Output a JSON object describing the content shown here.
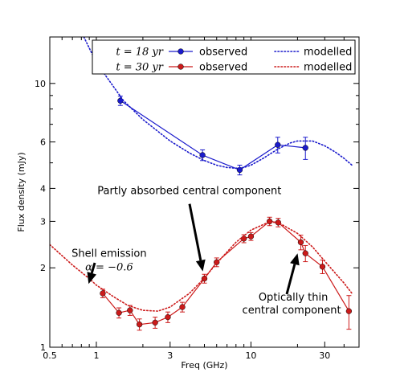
{
  "chart_data": {
    "type": "line",
    "title": "",
    "xlabel": "Freq (GHz)",
    "ylabel": "Flux density (mJy)",
    "xscale": "log",
    "yscale": "log",
    "xlim": [
      0.5,
      50
    ],
    "ylim": [
      1,
      15
    ],
    "xticks": [
      0.5,
      1,
      3,
      10,
      30
    ],
    "xtick_labels": [
      "0.5",
      "1",
      "3",
      "10",
      "30"
    ],
    "yticks": [
      1,
      2,
      3,
      4,
      6,
      10
    ],
    "ytick_labels": [
      "1",
      "2",
      "3",
      "4",
      "6",
      "10"
    ],
    "grid": false,
    "legend": {
      "placement": "top-right",
      "rows": [
        {
          "prefix": "t = 18 yr",
          "observed": "observed",
          "modelled": "modelled"
        },
        {
          "prefix": "t = 30 yr",
          "observed": "observed",
          "modelled": "modelled"
        }
      ]
    },
    "series": [
      {
        "name": "observed",
        "group": "t = 18 yr",
        "style": "line-marker",
        "color": "#1a1acc",
        "x": [
          1.43,
          4.86,
          8.46,
          14.9,
          22.5
        ],
        "y": [
          8.6,
          5.35,
          4.7,
          5.85,
          5.7
        ],
        "yerr": [
          0.35,
          0.25,
          0.2,
          0.4,
          0.55
        ]
      },
      {
        "name": "modelled",
        "group": "t = 18 yr",
        "style": "dotted",
        "color": "#1a1acc",
        "x": [
          0.83,
          1,
          1.5,
          2,
          3,
          4,
          5,
          6,
          7,
          8,
          9,
          10,
          12,
          15,
          18,
          20,
          25,
          30,
          35,
          40,
          45
        ],
        "y": [
          15,
          12.0,
          8.6,
          7.3,
          6.05,
          5.45,
          5.1,
          4.9,
          4.8,
          4.77,
          4.8,
          4.9,
          5.2,
          5.65,
          5.95,
          6.05,
          6.05,
          5.8,
          5.5,
          5.2,
          4.9
        ]
      },
      {
        "name": "observed",
        "group": "t = 30 yr",
        "style": "line-marker",
        "color": "#cc1a1a",
        "x": [
          1.1,
          1.4,
          1.65,
          1.9,
          2.4,
          2.9,
          3.6,
          5.0,
          6.0,
          9.0,
          10.0,
          13.2,
          15.0,
          21.0,
          22.5,
          29.0,
          43.0
        ],
        "y": [
          1.6,
          1.35,
          1.38,
          1.22,
          1.24,
          1.3,
          1.42,
          1.82,
          2.1,
          2.58,
          2.63,
          3.0,
          2.97,
          2.5,
          2.27,
          2.02,
          1.37
        ],
        "yerr": [
          0.06,
          0.06,
          0.06,
          0.06,
          0.06,
          0.06,
          0.06,
          0.07,
          0.08,
          0.09,
          0.09,
          0.11,
          0.11,
          0.16,
          0.16,
          0.12,
          0.2
        ]
      },
      {
        "name": "modelled",
        "group": "t = 30 yr",
        "style": "dotted",
        "color": "#cc1a1a",
        "x": [
          0.5,
          0.7,
          0.9,
          1.0,
          1.3,
          1.6,
          2.0,
          2.5,
          3.0,
          4.0,
          5.0,
          6.0,
          8.0,
          10.0,
          13.0,
          15.0,
          20.0,
          25.0,
          30.0,
          40.0,
          45.0
        ],
        "y": [
          2.45,
          2.05,
          1.82,
          1.72,
          1.55,
          1.44,
          1.38,
          1.37,
          1.42,
          1.6,
          1.83,
          2.08,
          2.5,
          2.78,
          2.98,
          2.97,
          2.7,
          2.4,
          2.12,
          1.75,
          1.6
        ]
      }
    ],
    "annotations": [
      {
        "id": "absorbed",
        "lines": [
          "Partly absorbed central component"
        ],
        "points_to": [
          5.0,
          1.82
        ],
        "text_at": [
          4.0,
          3.8
        ]
      },
      {
        "id": "shell",
        "lines": [
          "Shell emission",
          "α = −0.6"
        ],
        "points_to": [
          0.88,
          1.75
        ],
        "text_at": [
          0.75,
          2.2
        ]
      },
      {
        "id": "thin",
        "lines": [
          "Optically thin",
          "central component"
        ],
        "points_to": [
          21.0,
          2.1
        ],
        "text_at": [
          19.0,
          1.5
        ]
      }
    ]
  }
}
